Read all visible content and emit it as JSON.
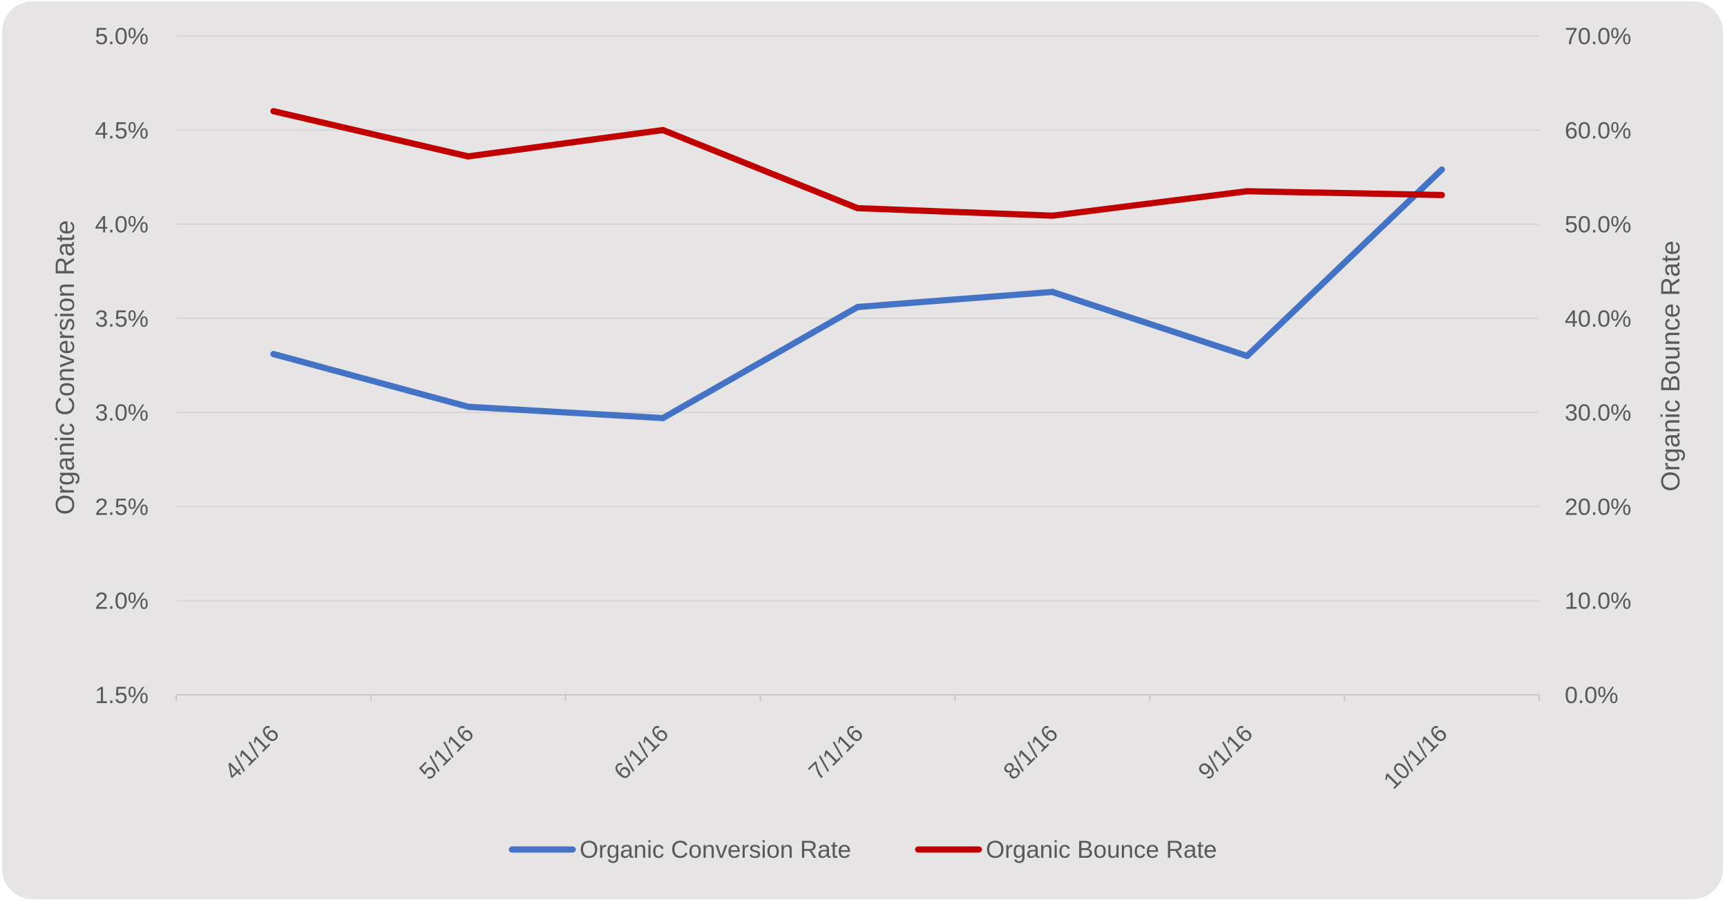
{
  "colors": {
    "background": "#e7e4e6",
    "gridline": "#d5d3d5",
    "axis_line": "#c8c6c8",
    "text": "#595959",
    "series_conversion": "#4472c4",
    "series_bounce": "#c00000"
  },
  "chart_data": {
    "type": "line",
    "title": "",
    "x": [
      "4/1/16",
      "5/1/16",
      "6/1/16",
      "7/1/16",
      "8/1/16",
      "9/1/16",
      "10/1/16"
    ],
    "xlabel": "",
    "ylabel_left": "Organic Conversion Rate",
    "ylabel_right": "Organic Bounce Rate",
    "ylim_left": [
      1.5,
      5.0
    ],
    "ylim_right": [
      0.0,
      70.0
    ],
    "yticks_left": [
      "1.5%",
      "2.0%",
      "2.5%",
      "3.0%",
      "3.5%",
      "4.0%",
      "4.5%",
      "5.0%"
    ],
    "yticks_right": [
      "0.0%",
      "10.0%",
      "20.0%",
      "30.0%",
      "40.0%",
      "50.0%",
      "60.0%",
      "70.0%"
    ],
    "grid": true,
    "legend_position": "bottom",
    "series": [
      {
        "name": "Organic Conversion Rate",
        "axis": "left",
        "color": "#4472c4",
        "values": [
          3.31,
          3.03,
          2.97,
          3.56,
          3.64,
          3.3,
          4.29
        ]
      },
      {
        "name": "Organic Bounce Rate",
        "axis": "right",
        "color": "#c00000",
        "values": [
          62.0,
          57.2,
          60.0,
          51.7,
          50.9,
          53.5,
          53.1
        ]
      }
    ]
  }
}
